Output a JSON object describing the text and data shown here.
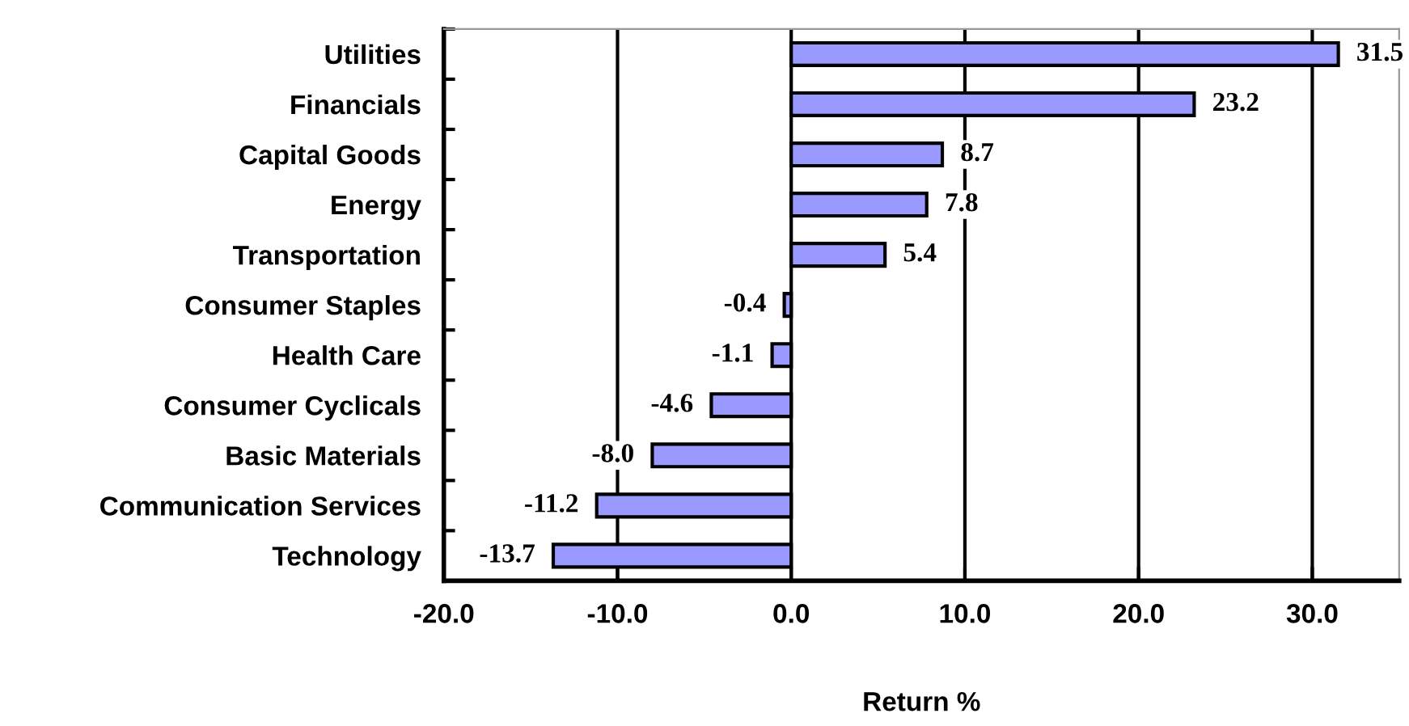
{
  "chart_data": {
    "type": "bar",
    "orientation": "horizontal",
    "xlabel": "Return %",
    "categories": [
      "Utilities",
      "Financials",
      "Capital Goods",
      "Energy",
      "Transportation",
      "Consumer Staples",
      "Health Care",
      "Consumer Cyclicals",
      "Basic Materials",
      "Communication Services",
      "Technology"
    ],
    "values": [
      31.5,
      23.2,
      8.7,
      7.8,
      5.4,
      -0.4,
      -1.1,
      -4.6,
      -8.0,
      -11.2,
      -13.7
    ],
    "value_labels": [
      "31.5",
      "23.2",
      "8.7",
      "7.8",
      "5.4",
      "-0.4",
      "-1.1",
      "-4.6",
      "-8.0",
      "-11.2",
      "-13.7"
    ],
    "color": "#9999ff",
    "xlim": [
      -20,
      35
    ],
    "xticks": [
      {
        "value": -20,
        "label": "-20.0"
      },
      {
        "value": -10,
        "label": "-10.0"
      },
      {
        "value": 0,
        "label": "0.0"
      },
      {
        "value": 10,
        "label": "10.0"
      },
      {
        "value": 20,
        "label": "20.0"
      },
      {
        "value": 30,
        "label": "30.0"
      }
    ],
    "grid": "x",
    "legend": false
  }
}
